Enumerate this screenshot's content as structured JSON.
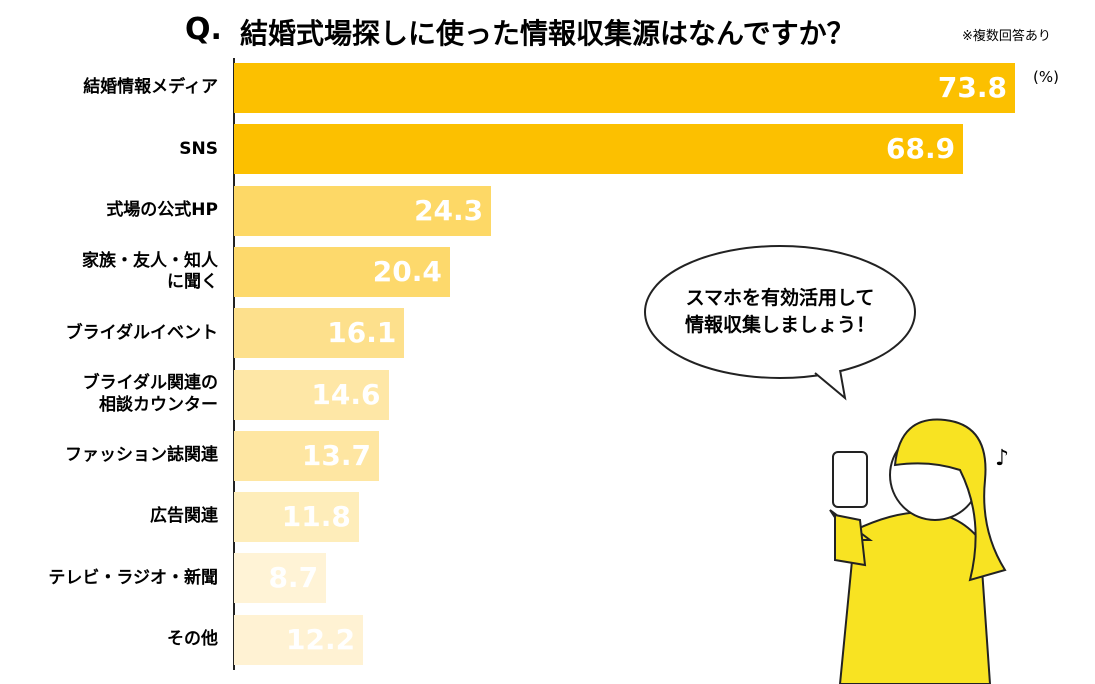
{
  "chart_data": {
    "type": "bar",
    "orientation": "horizontal",
    "title_prefix": "Q.",
    "title": "結婚式場探しに使った情報収集源はなんですか？",
    "note": "※複数回答あり",
    "unit": "(%)",
    "categories": [
      "結婚情報メディア",
      "SNS",
      "式場の公式HP",
      "家族・友人・知人\nに聞く",
      "ブライダルイベント",
      "ブライダル関連の\n相談カウンター",
      "ファッション誌関連",
      "広告関連",
      "テレビ・ラジオ・新聞",
      "その他"
    ],
    "values": [
      73.8,
      68.9,
      24.3,
      20.4,
      16.1,
      14.6,
      13.7,
      11.8,
      8.7,
      12.2
    ],
    "colors": [
      "#fcc000",
      "#fcc000",
      "#fdd866",
      "#fdd96c",
      "#fde08c",
      "#fee7a6",
      "#fee6a2",
      "#feedba",
      "#fff3d6",
      "#fff2d3"
    ],
    "bubble": "スマホを有効活用して\n情報収集しましょう！"
  }
}
